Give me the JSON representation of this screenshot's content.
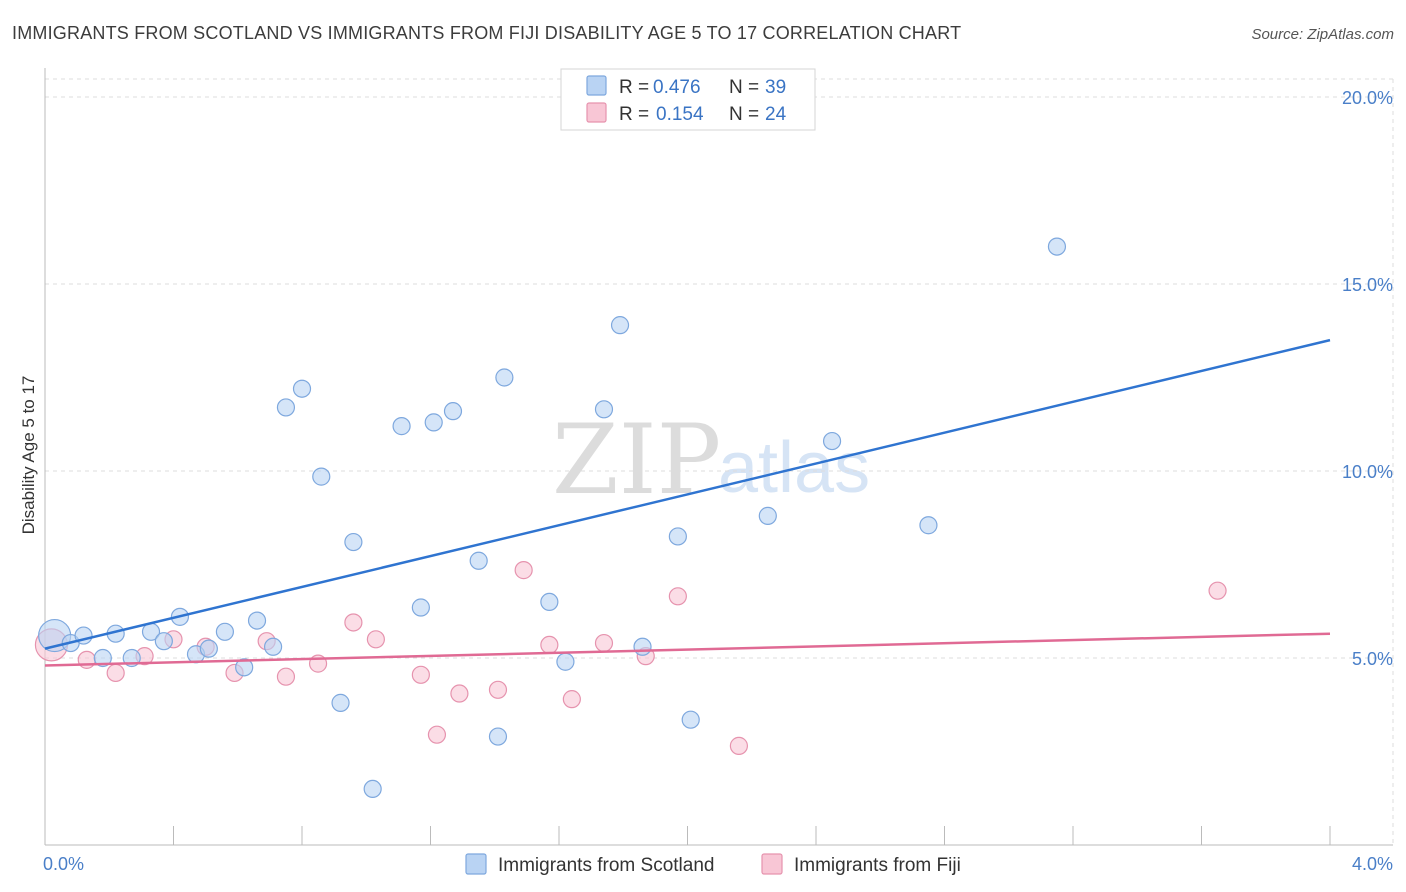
{
  "title": "IMMIGRANTS FROM SCOTLAND VS IMMIGRANTS FROM FIJI DISABILITY AGE 5 TO 17 CORRELATION CHART",
  "source": "Source: ZipAtlas.com",
  "watermark": {
    "zip": "ZIP",
    "atlas": "atlas"
  },
  "colors": {
    "scotland_fill": "#b9d3f3",
    "scotland_stroke": "#7ea8de",
    "scotland_line": "#2f74d0",
    "fiji_fill": "#f8c6d5",
    "fiji_stroke": "#e693ae",
    "fiji_line": "#e06a94",
    "tick_label": "#4a7fc8",
    "grid": "#dddddd"
  },
  "legend": {
    "rows": [
      {
        "r_label": "R =",
        "r_value": "0.476",
        "n_label": "N =",
        "n_value": "39"
      },
      {
        "r_label": "R =",
        "r_value": "0.154",
        "n_label": "N =",
        "n_value": "24"
      }
    ]
  },
  "chart_data": {
    "type": "scatter",
    "title": "IMMIGRANTS FROM SCOTLAND VS IMMIGRANTS FROM FIJI DISABILITY AGE 5 TO 17 CORRELATION CHART",
    "xlabel": "",
    "ylabel": "Disability Age 5 to 17",
    "xlim": [
      0,
      4
    ],
    "ylim": [
      0,
      20.5
    ],
    "y_ticks": [
      {
        "value": 5,
        "label": "5.0%"
      },
      {
        "value": 10,
        "label": "10.0%"
      },
      {
        "value": 15,
        "label": "15.0%"
      },
      {
        "value": 20,
        "label": "20.0%"
      }
    ],
    "x_tick_labels": [
      {
        "value": 0,
        "label": "0.0%"
      },
      {
        "value": 4,
        "label": "4.0%"
      }
    ],
    "x_minor_ticks": [
      0,
      0.4,
      0.8,
      1.2,
      1.6,
      2.0,
      2.4,
      2.8,
      3.2,
      3.6,
      4.0
    ],
    "grid": true,
    "legend_position": "top-center",
    "series": [
      {
        "name": "Immigrants from Scotland",
        "points": [
          {
            "x": 0.03,
            "y": 5.6,
            "size": "large"
          },
          {
            "x": 0.08,
            "y": 5.4
          },
          {
            "x": 0.12,
            "y": 5.6
          },
          {
            "x": 0.18,
            "y": 5.0
          },
          {
            "x": 0.22,
            "y": 5.65
          },
          {
            "x": 0.27,
            "y": 5.0
          },
          {
            "x": 0.33,
            "y": 5.7
          },
          {
            "x": 0.37,
            "y": 5.45
          },
          {
            "x": 0.42,
            "y": 6.1
          },
          {
            "x": 0.47,
            "y": 5.1
          },
          {
            "x": 0.51,
            "y": 5.25
          },
          {
            "x": 0.56,
            "y": 5.7
          },
          {
            "x": 0.62,
            "y": 4.75
          },
          {
            "x": 0.66,
            "y": 6.0
          },
          {
            "x": 0.71,
            "y": 5.3
          },
          {
            "x": 0.75,
            "y": 11.7
          },
          {
            "x": 0.8,
            "y": 12.2
          },
          {
            "x": 0.86,
            "y": 9.85
          },
          {
            "x": 0.92,
            "y": 3.8
          },
          {
            "x": 0.96,
            "y": 8.1
          },
          {
            "x": 1.02,
            "y": 1.5
          },
          {
            "x": 1.11,
            "y": 11.2
          },
          {
            "x": 1.17,
            "y": 6.35
          },
          {
            "x": 1.21,
            "y": 11.3
          },
          {
            "x": 1.27,
            "y": 11.6
          },
          {
            "x": 1.35,
            "y": 7.6
          },
          {
            "x": 1.41,
            "y": 2.9
          },
          {
            "x": 1.43,
            "y": 12.5
          },
          {
            "x": 1.57,
            "y": 6.5
          },
          {
            "x": 1.62,
            "y": 4.9
          },
          {
            "x": 1.74,
            "y": 11.65
          },
          {
            "x": 1.79,
            "y": 13.9
          },
          {
            "x": 1.86,
            "y": 5.3
          },
          {
            "x": 1.97,
            "y": 8.25
          },
          {
            "x": 2.01,
            "y": 3.35
          },
          {
            "x": 2.25,
            "y": 8.8
          },
          {
            "x": 2.45,
            "y": 10.8
          },
          {
            "x": 2.75,
            "y": 8.55
          },
          {
            "x": 3.15,
            "y": 16.0
          }
        ],
        "trendline": {
          "x": [
            0,
            4
          ],
          "y": [
            5.25,
            13.5
          ]
        }
      },
      {
        "name": "Immigrants from Fiji",
        "points": [
          {
            "x": 0.02,
            "y": 5.35,
            "size": "large"
          },
          {
            "x": 0.13,
            "y": 4.95
          },
          {
            "x": 0.22,
            "y": 4.6
          },
          {
            "x": 0.31,
            "y": 5.05
          },
          {
            "x": 0.4,
            "y": 5.5
          },
          {
            "x": 0.5,
            "y": 5.3
          },
          {
            "x": 0.59,
            "y": 4.6
          },
          {
            "x": 0.69,
            "y": 5.45
          },
          {
            "x": 0.75,
            "y": 4.5
          },
          {
            "x": 0.85,
            "y": 4.85
          },
          {
            "x": 0.96,
            "y": 5.95
          },
          {
            "x": 1.03,
            "y": 5.5
          },
          {
            "x": 1.17,
            "y": 4.55
          },
          {
            "x": 1.22,
            "y": 2.95
          },
          {
            "x": 1.29,
            "y": 4.05
          },
          {
            "x": 1.41,
            "y": 4.15
          },
          {
            "x": 1.49,
            "y": 7.35
          },
          {
            "x": 1.57,
            "y": 5.35
          },
          {
            "x": 1.64,
            "y": 3.9
          },
          {
            "x": 1.74,
            "y": 5.4
          },
          {
            "x": 1.87,
            "y": 5.05
          },
          {
            "x": 1.97,
            "y": 6.65
          },
          {
            "x": 2.16,
            "y": 2.65
          },
          {
            "x": 3.65,
            "y": 6.8
          }
        ],
        "trendline": {
          "x": [
            0,
            4
          ],
          "y": [
            4.8,
            5.65
          ]
        }
      }
    ]
  }
}
